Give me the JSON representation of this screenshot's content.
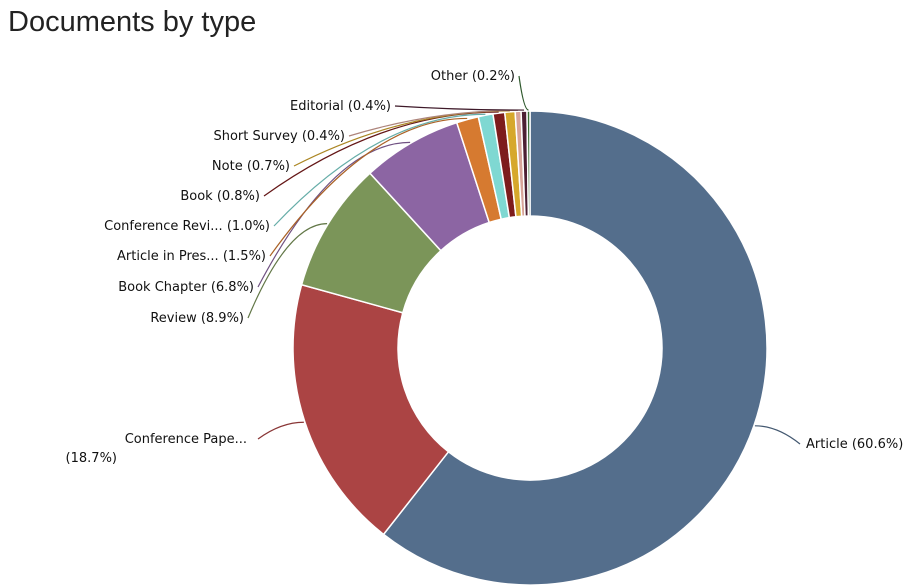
{
  "chart_data": {
    "type": "pie",
    "variant": "donut",
    "title": "Documents by type",
    "legend": "none",
    "slices": [
      {
        "name": "Article",
        "label_lines": [
          "Article (60.6%)"
        ],
        "value": 60.6,
        "color": "#546e8c"
      },
      {
        "name": "Conference Paper",
        "label_lines": [
          "Conference Pape...",
          "(18.7%)"
        ],
        "value": 18.7,
        "color": "#ab4444"
      },
      {
        "name": "Review",
        "label_lines": [
          "Review (8.9%)"
        ],
        "value": 8.9,
        "color": "#7b9559"
      },
      {
        "name": "Book Chapter",
        "label_lines": [
          "Book Chapter (6.8%)"
        ],
        "value": 6.8,
        "color": "#8c65a3"
      },
      {
        "name": "Article in Press",
        "label_lines": [
          "Article in Pres... (1.5%)"
        ],
        "value": 1.5,
        "color": "#d67a30"
      },
      {
        "name": "Conference Review",
        "label_lines": [
          "Conference Revi... (1.0%)"
        ],
        "value": 1.0,
        "color": "#7fd8d2"
      },
      {
        "name": "Book",
        "label_lines": [
          "Book (0.8%)"
        ],
        "value": 0.8,
        "color": "#7d1c1c"
      },
      {
        "name": "Note",
        "label_lines": [
          "Note (0.7%)"
        ],
        "value": 0.7,
        "color": "#d6a82c"
      },
      {
        "name": "Short Survey",
        "label_lines": [
          "Short Survey (0.4%)"
        ],
        "value": 0.4,
        "color": "#d8a59a"
      },
      {
        "name": "Editorial",
        "label_lines": [
          "Editorial (0.4%)"
        ],
        "value": 0.4,
        "color": "#4d1f33"
      },
      {
        "name": "Other",
        "label_lines": [
          "Other (0.2%)"
        ],
        "value": 0.2,
        "color": "#3a6e37"
      }
    ]
  }
}
